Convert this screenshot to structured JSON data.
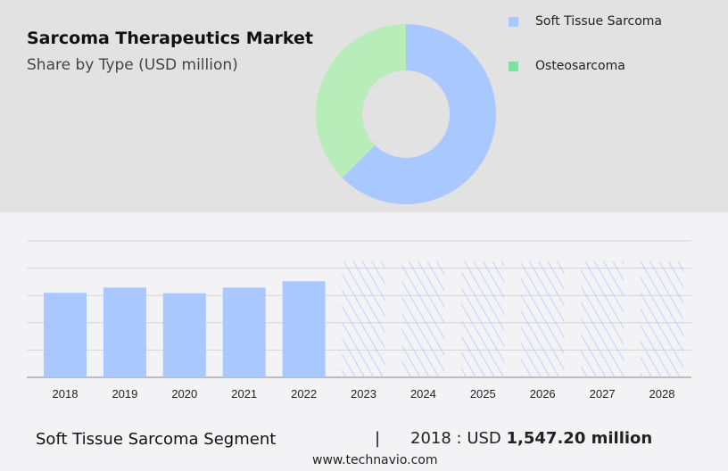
{
  "header": {
    "title": "Sarcoma Therapeutics Market",
    "subtitle": "Share by Type (USD million)"
  },
  "chart_data": [
    {
      "type": "pie",
      "style": "donut",
      "slices": [
        {
          "name": "Soft Tissue Sarcoma",
          "value": 62.5,
          "color": "#a8c8ff"
        },
        {
          "name": "Osteosarcoma",
          "value": 37.5,
          "color": "#b8ecb8"
        }
      ],
      "legend": [
        {
          "label": "Soft Tissue Sarcoma",
          "color": "#a8c8ff"
        },
        {
          "label": "Osteosarcoma",
          "color": "#7ee39a"
        }
      ],
      "legend_placement": "right"
    },
    {
      "type": "bar",
      "categories": [
        "2018",
        "2019",
        "2020",
        "2021",
        "2022",
        "2023",
        "2024",
        "2025",
        "2026",
        "2027",
        "2028"
      ],
      "values": [
        1547.2,
        1645,
        1540,
        1645,
        1760,
        null,
        null,
        null,
        null,
        null,
        null
      ],
      "forecast": [
        false,
        false,
        false,
        false,
        false,
        true,
        true,
        true,
        true,
        true,
        true
      ],
      "ylim": [
        0,
        2500
      ],
      "grid": true,
      "color": "#a8c8ff"
    }
  ],
  "footer": {
    "segment": "Soft Tissue Sarcoma Segment",
    "separator": "|",
    "year_label": "2018 : USD",
    "value": "1,547.20 million",
    "site": "www.technavio.com"
  }
}
